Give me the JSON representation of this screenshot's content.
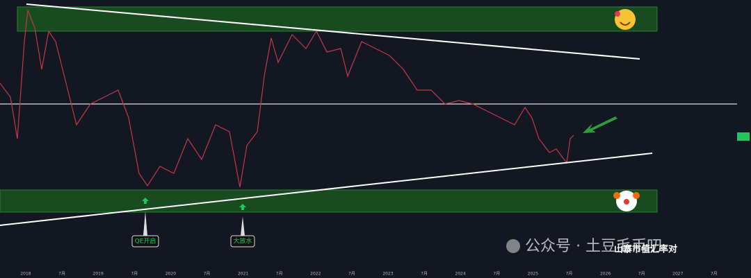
{
  "x_axis": {
    "labels": [
      "2018",
      "7月",
      "2019",
      "7月",
      "2020",
      "7月",
      "2021",
      "7月",
      "2022",
      "7月",
      "2023",
      "7月",
      "2024",
      "7月",
      "2025",
      "7月",
      "2026",
      "7月",
      "2027",
      "7月"
    ]
  },
  "annotations": {
    "qe": "QE开启",
    "liquidity": "大放水"
  },
  "watermark": {
    "source": "公众号 · 土豆毛币叨",
    "pair": "山寨市值汇率对"
  }
}
